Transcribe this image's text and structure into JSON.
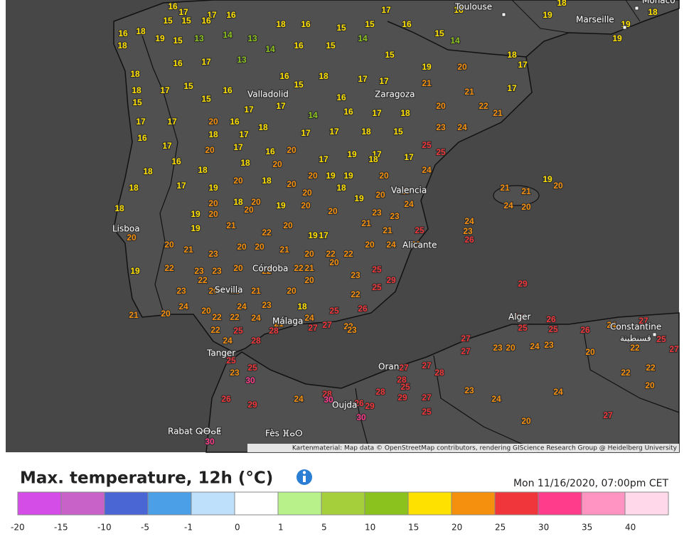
{
  "map": {
    "cities": [
      "Toulouse",
      "Marseille",
      "Monaco",
      "Valladolid",
      "Zaragoza",
      "Lisboa",
      "Valencia",
      "Alicante",
      "Córdoba",
      "Sevilla",
      "Málaga",
      "Tanger",
      "Alger",
      "Constantine",
      "قسنطينة",
      "Oran",
      "Oujda",
      "Rabat ⵕⴱⴰⵟ",
      "Fès ⴼⴰⵙ"
    ],
    "temperatures": [
      16,
      17,
      17,
      16,
      17,
      16,
      19,
      18,
      19,
      18,
      19,
      16,
      18,
      15,
      15,
      16,
      18,
      16,
      15,
      15,
      16,
      15,
      14,
      18,
      18,
      19,
      15,
      13,
      14,
      13,
      14,
      16,
      15,
      14,
      15,
      19,
      20,
      17,
      18,
      16,
      17,
      13,
      16,
      18,
      17,
      17,
      21,
      21,
      17,
      18,
      17,
      15,
      16,
      15,
      16,
      18,
      20,
      22,
      21,
      15,
      15,
      17,
      17,
      14,
      16,
      17,
      17,
      17,
      20,
      16,
      18,
      17,
      17,
      18,
      15,
      23,
      24,
      16,
      18,
      17,
      20,
      19,
      17,
      25,
      25,
      17,
      20,
      17,
      16,
      17,
      18,
      17,
      16,
      18,
      18,
      20,
      20,
      19,
      19,
      20,
      24,
      18,
      17,
      19,
      20,
      18,
      20,
      20,
      18,
      19,
      20,
      23,
      21,
      21,
      19,
      20,
      18,
      20,
      18,
      20,
      19,
      20,
      20,
      23,
      24,
      24,
      20,
      18,
      19,
      20,
      20,
      21,
      23,
      24,
      25,
      23,
      26,
      20,
      19,
      21,
      22,
      20,
      19,
      17,
      21,
      23,
      20,
      21,
      23,
      20,
      20,
      21,
      20,
      22,
      22,
      20,
      24,
      19,
      22,
      23,
      23,
      20,
      22,
      22,
      21,
      20,
      23,
      25,
      23,
      22,
      20,
      22,
      21,
      20,
      20,
      22,
      29,
      25,
      29,
      21,
      20,
      24,
      20,
      24,
      23,
      18,
      25,
      26,
      22,
      22,
      24,
      21,
      24,
      27,
      22,
      23,
      26,
      26,
      22,
      25,
      28,
      27,
      25,
      25,
      26,
      24,
      27,
      24,
      28,
      27,
      23,
      20,
      24,
      23,
      20,
      22,
      25,
      27,
      25,
      25,
      27,
      27,
      28,
      22,
      22,
      27,
      23,
      30,
      28,
      25,
      20,
      26,
      29,
      24,
      28,
      30,
      26,
      29,
      28,
      29,
      27,
      23,
      24,
      24,
      25,
      30,
      20,
      27,
      30
    ],
    "attribution": "Kartenmaterial: Map data © OpenStreetMap contributors, rendering GIScience Research Group @ Heidelberg University"
  },
  "legend": {
    "title": "Max. temperature, 12h (°C)",
    "date": "Mon 11/16/2020, 07:00pm CET",
    "colors": [
      "#d34de6",
      "#c862c8",
      "#4a66d4",
      "#4a9fe6",
      "#bfe0fb",
      "#ffffff",
      "#b8f08a",
      "#a6cf3c",
      "#8cc21e",
      "#ffe100",
      "#f5900f",
      "#f0363a",
      "#ff3b8c",
      "#ff94c2",
      "#ffd9ea"
    ],
    "ticks": [
      -20,
      -15,
      -10,
      -5,
      -1,
      0,
      1,
      5,
      10,
      15,
      20,
      25,
      30,
      35,
      40
    ]
  }
}
